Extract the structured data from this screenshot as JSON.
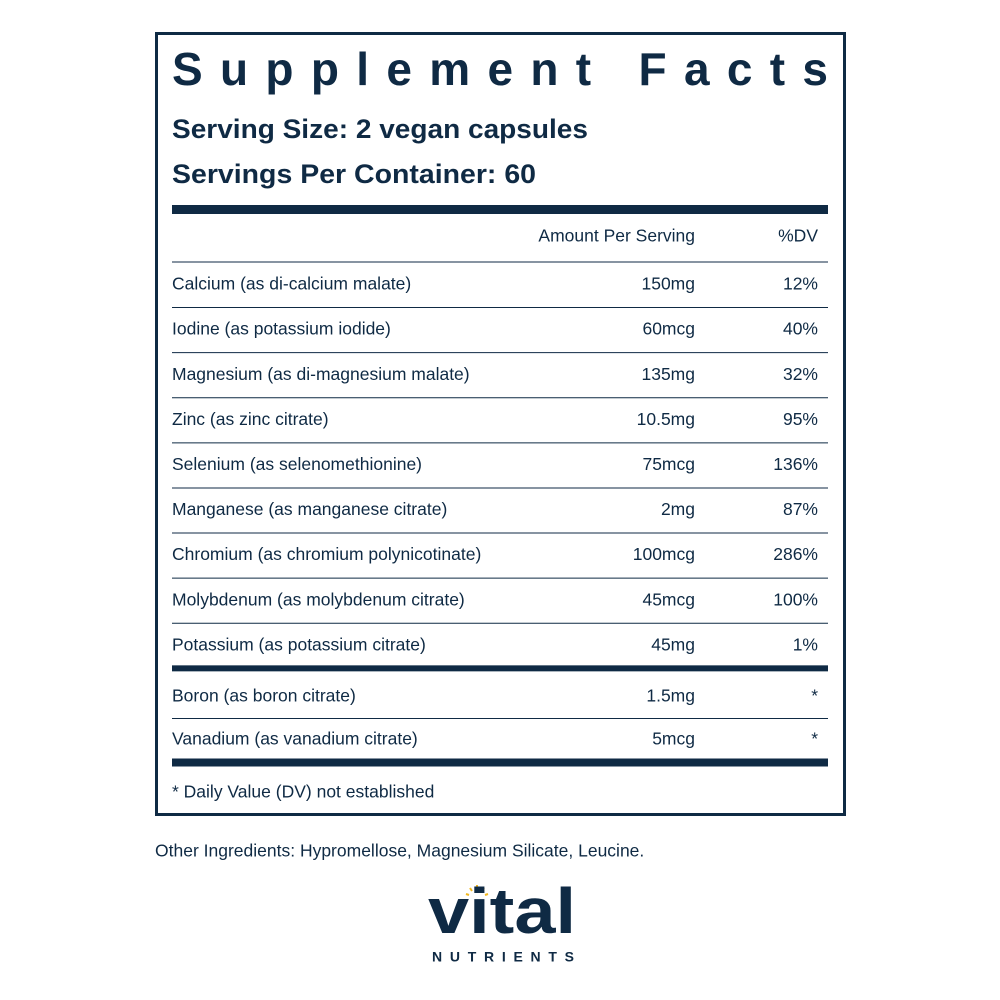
{
  "panel": {
    "title": "Supplement Facts",
    "serving_size": "Serving Size: 2 vegan capsules",
    "servings_per_container": "Servings Per Container: 60",
    "columns": [
      "Amount Per Serving",
      "%DV"
    ],
    "row_groups": [
      [
        [
          "Calcium (as di-calcium malate)",
          "150mg",
          "12%"
        ],
        [
          "Iodine (as potassium iodide)",
          "60mcg",
          "40%"
        ],
        [
          "Magnesium (as di-magnesium malate)",
          "135mg",
          "32%"
        ],
        [
          "Zinc (as zinc citrate)",
          "10.5mg",
          "95%"
        ],
        [
          "Selenium (as selenomethionine)",
          "75mcg",
          "136%"
        ],
        [
          "Manganese (as manganese citrate)",
          "2mg",
          "87%"
        ],
        [
          "Chromium (as chromium polynicotinate)",
          "100mcg",
          "286%"
        ],
        [
          "Molybdenum (as molybdenum citrate)",
          "45mcg",
          "100%"
        ],
        [
          "Potassium (as potassium citrate)",
          "45mg",
          "1%"
        ]
      ],
      [
        [
          "Boron (as boron citrate)",
          "1.5mg",
          "*"
        ],
        [
          "Vanadium (as vanadium citrate)",
          "5mcg",
          "*"
        ]
      ]
    ],
    "footnote": "* Daily Value (DV) not established"
  },
  "other_ingredients": "Other Ingredients: Hypromellose, Magnesium Silicate, Leucine.",
  "logo": {
    "name": "vital",
    "tagline": "NUTRIENTS"
  }
}
